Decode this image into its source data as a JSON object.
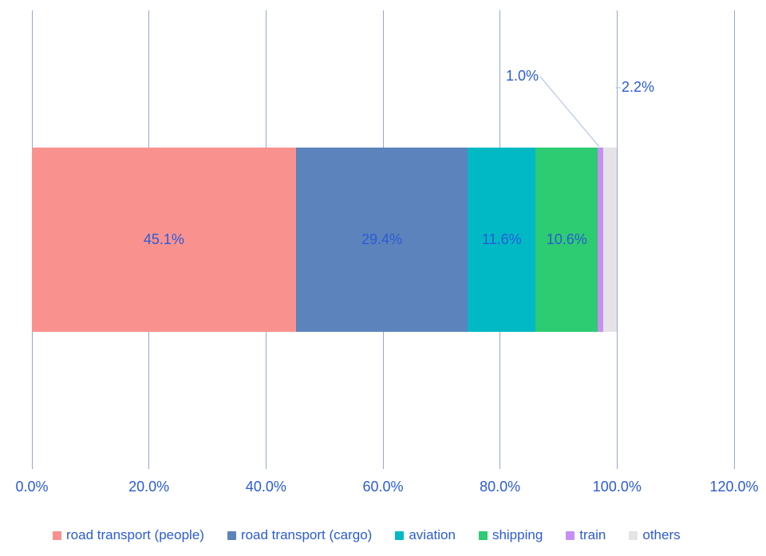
{
  "chart_data": {
    "type": "bar",
    "orientation": "horizontal",
    "stacked": true,
    "title": "",
    "xlabel": "",
    "ylabel": "",
    "xlim": [
      0,
      120
    ],
    "grid": "vertical-only",
    "legend_position": "bottom",
    "x_ticks": [
      {
        "label": "0.0%",
        "value": 0
      },
      {
        "label": "20.0%",
        "value": 20
      },
      {
        "label": "40.0%",
        "value": 40
      },
      {
        "label": "60.0%",
        "value": 60
      },
      {
        "label": "80.0%",
        "value": 80
      },
      {
        "label": "100.0%",
        "value": 100
      },
      {
        "label": "120.0%",
        "value": 120
      }
    ],
    "series": [
      {
        "name": "road transport (people)",
        "value": 45.1,
        "label": "45.1%",
        "color": "#F9928E",
        "label_placement": "inside"
      },
      {
        "name": "road transport (cargo)",
        "value": 29.4,
        "label": "29.4%",
        "color": "#5C83BB",
        "label_placement": "inside"
      },
      {
        "name": "aviation",
        "value": 11.6,
        "label": "11.6%",
        "color": "#00B9C5",
        "label_placement": "inside"
      },
      {
        "name": "shipping",
        "value": 10.6,
        "label": "10.6%",
        "color": "#2DCB72",
        "label_placement": "inside"
      },
      {
        "name": "train",
        "value": 1.0,
        "label": "1.0%",
        "color": "#C68FF1",
        "label_placement": "callout-above"
      },
      {
        "name": "others",
        "value": 2.2,
        "label": "2.2%",
        "color": "#E5E3E5",
        "label_placement": "callout-right"
      }
    ]
  },
  "colors": {
    "text": "#2B5BD7",
    "gridline": "#93A7DF",
    "leader_line": "#AABDE9",
    "background": "#FFFFFF"
  }
}
